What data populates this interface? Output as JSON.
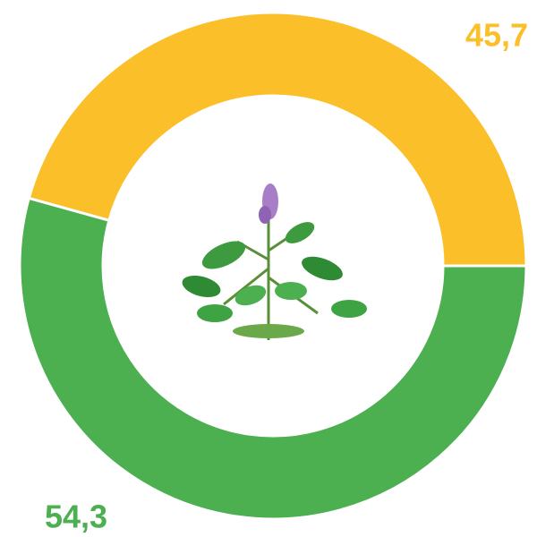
{
  "chart_data": {
    "type": "pie",
    "donut": true,
    "values": [
      54.3,
      45.7
    ],
    "value_labels": [
      "54,3",
      "45,7"
    ],
    "colors": [
      "#4caf50",
      "#fbbf2a"
    ]
  }
}
